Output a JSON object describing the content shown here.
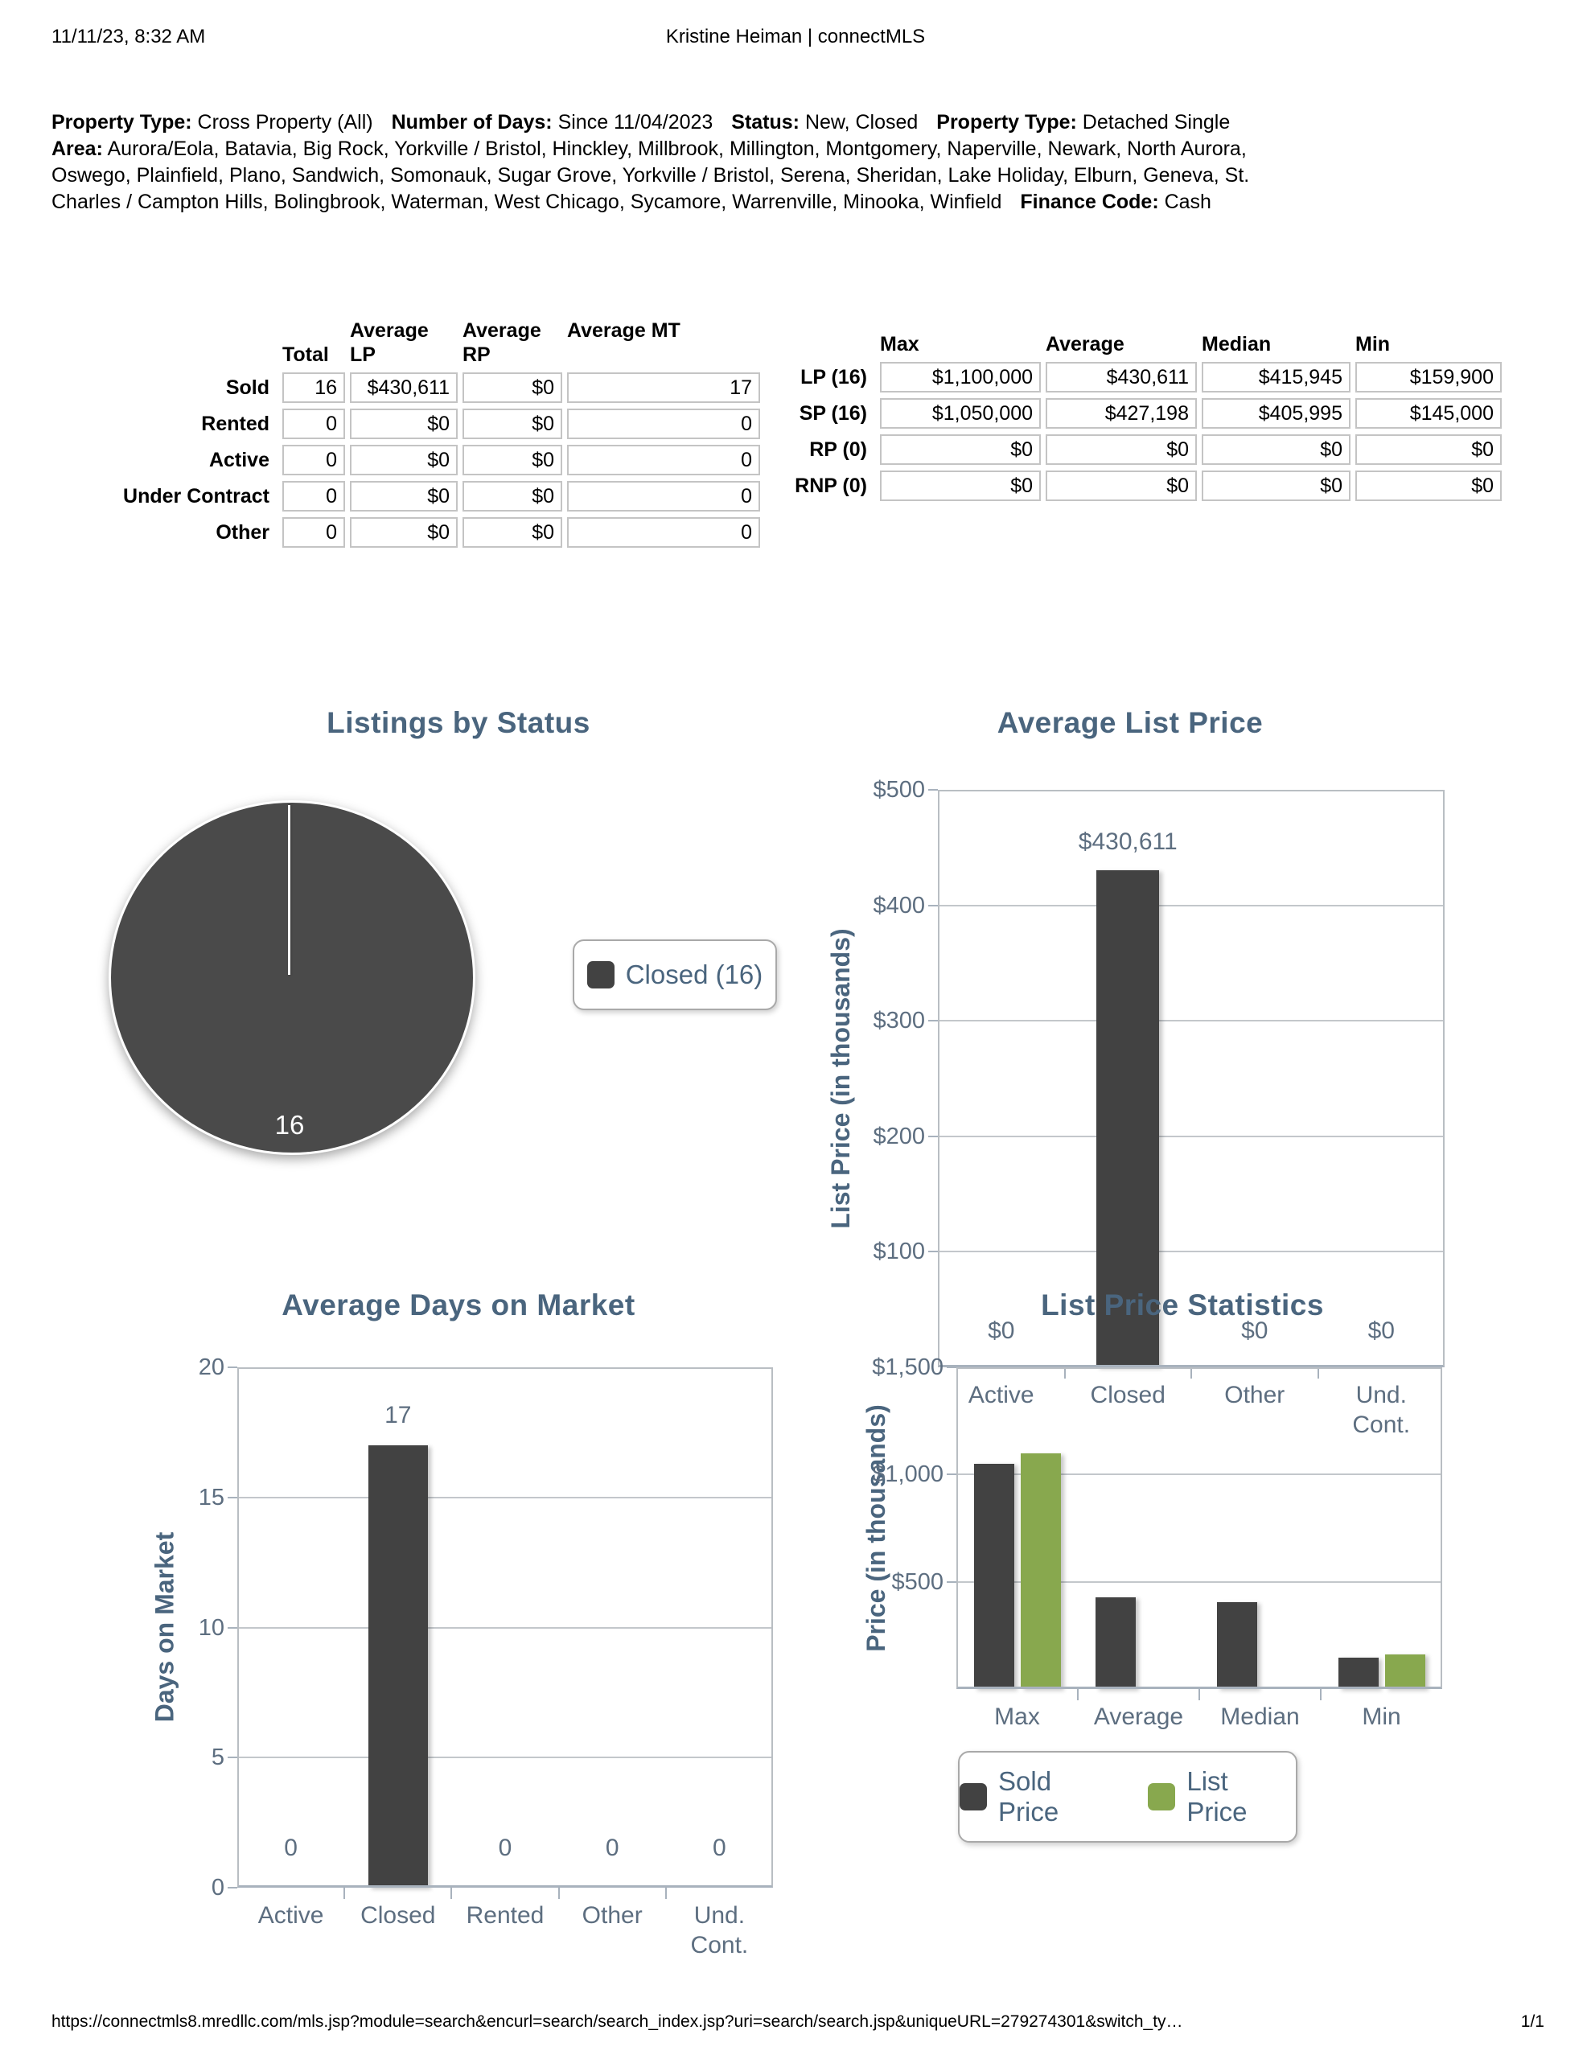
{
  "header": {
    "datetime": "11/11/23, 8:32 AM",
    "title": "Kristine Heiman | connectMLS"
  },
  "criteria": [
    {
      "label": "Property Type:",
      "value": "Cross Property (All)"
    },
    {
      "label": "Number of Days:",
      "value": "Since 11/04/2023"
    },
    {
      "label": "Status:",
      "value": "New, Closed"
    },
    {
      "label": "Property Type:",
      "value": "Detached Single"
    },
    {
      "label": "Area:",
      "value": "Aurora/Eola, Batavia, Big Rock, Yorkville / Bristol, Hinckley, Millbrook, Millington, Montgomery, Naperville, Newark, North Aurora, Oswego, Plainfield, Plano, Sandwich, Somonauk, Sugar Grove, Yorkville / Bristol, Serena, Sheridan, Lake Holiday, Elburn, Geneva, St. Charles / Campton Hills, Bolingbrook, Waterman, West Chicago, Sycamore, Warrenville, Minooka, Winfield"
    },
    {
      "label": "Finance Code:",
      "value": "Cash"
    }
  ],
  "status_table": {
    "columns": [
      "Total",
      "Average LP",
      "Average RP",
      "Average MT"
    ],
    "rows": [
      {
        "label": "Sold",
        "values": [
          "16",
          "$430,611",
          "$0",
          "17"
        ]
      },
      {
        "label": "Rented",
        "values": [
          "0",
          "$0",
          "$0",
          "0"
        ]
      },
      {
        "label": "Active",
        "values": [
          "0",
          "$0",
          "$0",
          "0"
        ]
      },
      {
        "label": "Under Contract",
        "values": [
          "0",
          "$0",
          "$0",
          "0"
        ]
      },
      {
        "label": "Other",
        "values": [
          "0",
          "$0",
          "$0",
          "0"
        ]
      }
    ]
  },
  "price_table": {
    "columns": [
      "Max",
      "Average",
      "Median",
      "Min"
    ],
    "rows": [
      {
        "label": "LP (16)",
        "values": [
          "$1,100,000",
          "$430,611",
          "$415,945",
          "$159,900"
        ]
      },
      {
        "label": "SP (16)",
        "values": [
          "$1,050,000",
          "$427,198",
          "$405,995",
          "$145,000"
        ]
      },
      {
        "label": "RP (0)",
        "values": [
          "$0",
          "$0",
          "$0",
          "$0"
        ]
      },
      {
        "label": "RNP (0)",
        "values": [
          "$0",
          "$0",
          "$0",
          "$0"
        ]
      }
    ]
  },
  "chart_data": [
    {
      "type": "pie",
      "title": "Listings by Status",
      "slices": [
        {
          "label": "Closed",
          "value": 16
        }
      ],
      "data_label": "16",
      "legend_label": "Closed (16)",
      "legend_position": "right",
      "color": "#4a4a4a"
    },
    {
      "type": "bar",
      "title": "Average List Price",
      "ylabel": "List Price (in thousands)",
      "categories": [
        "Active",
        "Closed",
        "Other",
        "Und. Cont."
      ],
      "values": [
        0,
        430.611,
        0,
        0
      ],
      "bar_labels": [
        "$0",
        "$430,611",
        "$0",
        "$0"
      ],
      "ylim": [
        0,
        500
      ],
      "yticks": [
        {
          "label": "$500",
          "value": 500
        },
        {
          "label": "$400",
          "value": 400
        },
        {
          "label": "$300",
          "value": 300
        },
        {
          "label": "$200",
          "value": 200
        },
        {
          "label": "$100",
          "value": 100
        }
      ],
      "grid": true,
      "bar_color": "#424242"
    },
    {
      "type": "bar",
      "title": "Average Days on Market",
      "ylabel": "Days on Market",
      "categories": [
        "Active",
        "Closed",
        "Rented",
        "Other",
        "Und. Cont."
      ],
      "values": [
        0,
        17,
        0,
        0,
        0
      ],
      "bar_labels": [
        "0",
        "17",
        "0",
        "0",
        "0"
      ],
      "ylim": [
        0,
        20
      ],
      "yticks": [
        {
          "label": "20",
          "value": 20
        },
        {
          "label": "15",
          "value": 15
        },
        {
          "label": "10",
          "value": 10
        },
        {
          "label": "5",
          "value": 5
        },
        {
          "label": "0",
          "value": 0
        }
      ],
      "grid": true,
      "bar_color": "#424242"
    },
    {
      "type": "bar",
      "title": "List Price Statistics",
      "ylabel": "Price (in thousands)",
      "categories": [
        "Max",
        "Average",
        "Median",
        "Min"
      ],
      "series": [
        {
          "name": "Sold Price",
          "color": "#424242",
          "values": [
            1050,
            427.198,
            405.995,
            145
          ]
        },
        {
          "name": "List Price",
          "color": "#88a84e",
          "values": [
            1100,
            null,
            null,
            159.9
          ]
        }
      ],
      "ylim": [
        0,
        1500
      ],
      "yticks": [
        {
          "label": "$1,500",
          "value": 1500
        },
        {
          "label": "$1,000",
          "value": 1000
        },
        {
          "label": "$500",
          "value": 500
        }
      ],
      "grid": true,
      "legend_position": "bottom"
    }
  ],
  "colors": {
    "title_text": "#4a657e",
    "axis_text": "#5d6e80",
    "bar_dark": "#424242",
    "bar_green": "#88a84e",
    "pie_fill": "#4a4a4a",
    "grid_line": "#c3c7cb"
  },
  "footer": {
    "url": "https://connectmls8.mredllc.com/mls.jsp?module=search&encurl=search/search_index.jsp?uri=search/search.jsp&uniqueURL=279274301&switch_ty…",
    "page": "1/1"
  }
}
